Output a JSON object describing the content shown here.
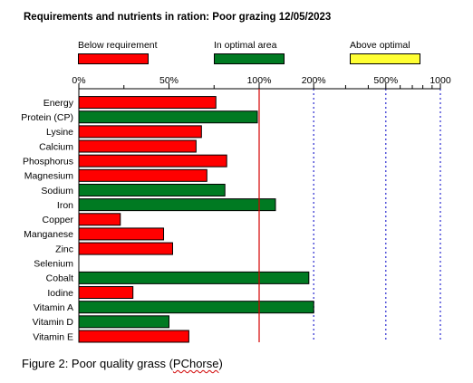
{
  "caption": {
    "prefix": "Figure 2: Poor quality grass (",
    "source": "PChorse",
    "suffix": ")"
  },
  "chart_data": {
    "type": "bar",
    "orientation": "horizontal",
    "title": "Requirements and nutrients in ration: Poor grazing 12/05/2023",
    "x_scale": "piecewise: linear 0–100%, logarithmic 100%–1000%",
    "x_ticks": [
      "0%",
      "50%",
      "100%",
      "200%",
      "500%",
      "1000"
    ],
    "xlim": [
      0,
      1000
    ],
    "reference_line": 100,
    "legend_position": "top",
    "legend": [
      {
        "key": "below",
        "label": "Below requirement",
        "color": "#ff0000"
      },
      {
        "key": "optimal",
        "label": "In optimal area",
        "color": "#007a22"
      },
      {
        "key": "above",
        "label": "Above optimal",
        "color": "#ffff33"
      }
    ],
    "categories": [
      "Energy",
      "Protein (CP)",
      "Lysine",
      "Calcium",
      "Phosphorus",
      "Magnesium",
      "Sodium",
      "Iron",
      "Copper",
      "Manganese",
      "Zinc",
      "Selenium",
      "Cobalt",
      "Iodine",
      "Vitamin A",
      "Vitamin D",
      "Vitamin E"
    ],
    "values": [
      76,
      99,
      68,
      65,
      82,
      71,
      81,
      123,
      23,
      47,
      52,
      0,
      188,
      30,
      200,
      50,
      61
    ],
    "status": [
      "below",
      "optimal",
      "below",
      "below",
      "below",
      "below",
      "optimal",
      "optimal",
      "below",
      "below",
      "below",
      "none",
      "optimal",
      "below",
      "optimal",
      "optimal",
      "below"
    ]
  }
}
